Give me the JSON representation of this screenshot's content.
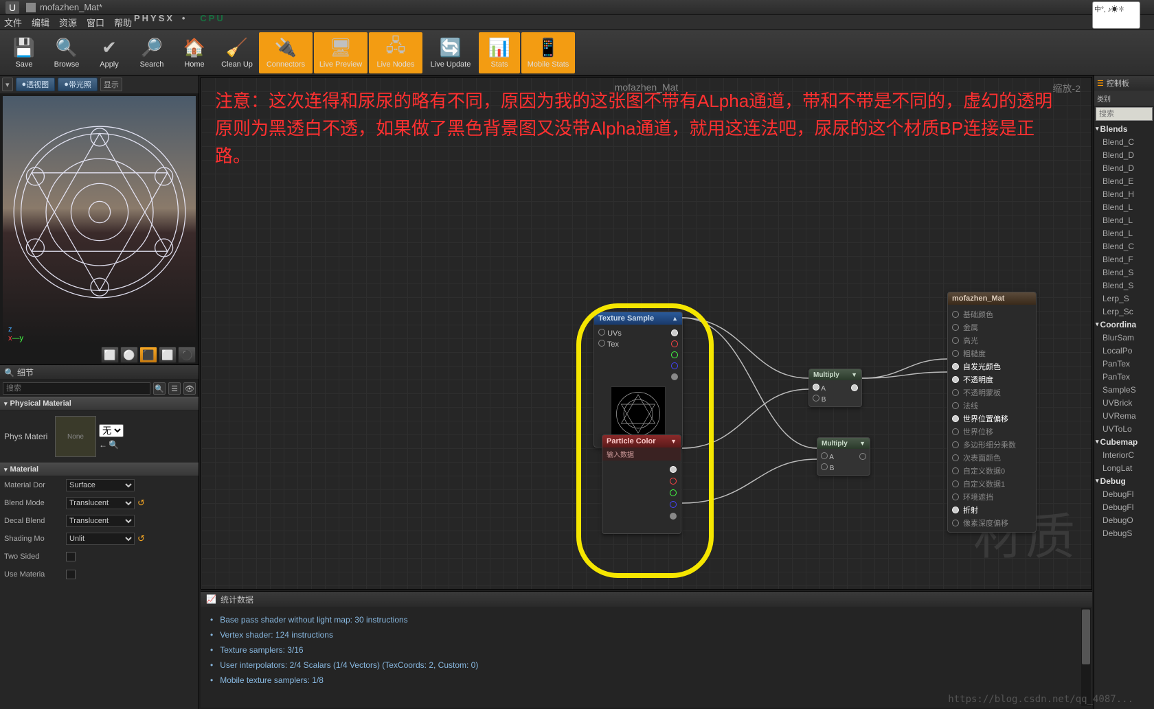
{
  "window": {
    "title": "mofazhen_Mat*",
    "ime": "中°,\n♪☀✽"
  },
  "menubar": [
    "文件",
    "编辑",
    "资源",
    "窗口",
    "帮助"
  ],
  "physx": {
    "main": "PHYSX",
    "sep": "•",
    "cpu": "CPU"
  },
  "toolbar": [
    {
      "name": "save",
      "label": "Save",
      "icon": "💾",
      "active": false,
      "wide": false
    },
    {
      "name": "browse",
      "label": "Browse",
      "icon": "🔍",
      "active": false,
      "wide": false
    },
    {
      "name": "apply",
      "label": "Apply",
      "icon": "✔",
      "active": false,
      "wide": false
    },
    {
      "name": "search",
      "label": "Search",
      "icon": "🔎",
      "active": false,
      "wide": false
    },
    {
      "name": "home",
      "label": "Home",
      "icon": "🏠",
      "active": false,
      "wide": false
    },
    {
      "name": "cleanup",
      "label": "Clean Up",
      "icon": "🧹",
      "active": false,
      "wide": false
    },
    {
      "name": "connectors",
      "label": "Connectors",
      "icon": "🔌",
      "active": true,
      "wide": true
    },
    {
      "name": "livepreview",
      "label": "Live Preview",
      "icon": "🖥",
      "active": true,
      "wide": true
    },
    {
      "name": "livenodes",
      "label": "Live Nodes",
      "icon": "🖧",
      "active": true,
      "wide": true
    },
    {
      "name": "liveupdate",
      "label": "Live Update",
      "icon": "🔄",
      "active": false,
      "wide": true
    },
    {
      "name": "stats",
      "label": "Stats",
      "icon": "📊",
      "active": true,
      "wide": false
    },
    {
      "name": "mobilestats",
      "label": "Mobile Stats",
      "icon": "📱",
      "active": true,
      "wide": true
    }
  ],
  "preview": {
    "buttons": {
      "persp": "透视图",
      "lit": "带光照",
      "show": "显示"
    },
    "axes": {
      "z": "z",
      "y": "y",
      "x": "x",
      "dash": "—"
    },
    "shapes": [
      "⬜",
      "⚪",
      "⬛",
      "⬜",
      "⚫"
    ],
    "shape_active_idx": 2
  },
  "details": {
    "tab": "细节",
    "search_ph": "搜索",
    "cat_phys": "Physical Material",
    "phys_label": "Phys Materi",
    "phys_none": "None",
    "phys_none_opt": "无",
    "cat_mat": "Material",
    "rows": {
      "dom": {
        "n": "Material Dor",
        "v": "Surface"
      },
      "blend": {
        "n": "Blend Mode",
        "v": "Translucent",
        "reset": true
      },
      "decal": {
        "n": "Decal Blend",
        "v": "Translucent"
      },
      "shade": {
        "n": "Shading Mo",
        "v": "Unlit",
        "reset": true
      },
      "two": {
        "n": "Two Sided"
      },
      "usemat": {
        "n": "Use Materia"
      }
    }
  },
  "graph": {
    "tab": "mofazhen_Mat",
    "zoom": "缩放-2",
    "watermark": "材质",
    "annotation": "注意：这次连得和尿尿的略有不同，原因为我的这张图不带有ALpha通道，带和不带是不同的，虚幻的透明原则为黑透白不透，如果做了黑色背景图又没带Alpha通道，就用这连法吧，尿尿的这个材质BP连接是正路。",
    "nodes": {
      "tex": {
        "title": "Texture Sample",
        "in": [
          "UVs",
          "Tex"
        ],
        "outs": [
          "w",
          "r",
          "g",
          "b",
          "a"
        ]
      },
      "pcolor": {
        "title": "Particle Color",
        "sub": "输入数据",
        "outs": [
          "w",
          "r",
          "g",
          "b",
          "a"
        ]
      },
      "mult": {
        "title": "Multiply",
        "ins": [
          "A",
          "B"
        ]
      },
      "output": {
        "title": "mofazhen_Mat",
        "pins": [
          {
            "t": "基础颜色",
            "on": false
          },
          {
            "t": "金属",
            "on": false
          },
          {
            "t": "高光",
            "on": false
          },
          {
            "t": "粗糙度",
            "on": false
          },
          {
            "t": "自发光颜色",
            "on": true
          },
          {
            "t": "不透明度",
            "on": true
          },
          {
            "t": "不透明蒙板",
            "on": false
          },
          {
            "t": "法线",
            "on": false
          },
          {
            "t": "世界位置偏移",
            "on": true
          },
          {
            "t": "世界位移",
            "on": false
          },
          {
            "t": "多边形细分乘数",
            "on": false
          },
          {
            "t": "次表面颜色",
            "on": false
          },
          {
            "t": "自定义数据0",
            "on": false
          },
          {
            "t": "自定义数据1",
            "on": false
          },
          {
            "t": "环境遮挡",
            "on": false
          },
          {
            "t": "折射",
            "on": true
          },
          {
            "t": "像素深度偏移",
            "on": false
          }
        ]
      }
    }
  },
  "stats": {
    "tab": "统计数据",
    "lines": [
      "Base pass shader without light map: 30 instructions",
      "Vertex shader: 124 instructions",
      "Texture samplers: 3/16",
      "User interpolators: 2/4 Scalars (1/4 Vectors) (TexCoords: 2, Custom: 0)",
      "Mobile texture samplers: 1/8"
    ]
  },
  "palette": {
    "title": "控制板",
    "search_ph": "搜索",
    "cat_label": "类别",
    "blends_hdr": "Blends",
    "items": [
      "Blend_C",
      "Blend_D",
      "Blend_D",
      "Blend_E",
      "Blend_H",
      "Blend_L",
      "Blend_L",
      "Blend_L",
      "Blend_C",
      "Blend_F",
      "Blend_S",
      "Blend_S",
      "Lerp_S",
      "Lerp_Sc"
    ],
    "coord_hdr": "Coordina",
    "coord": [
      "BlurSam",
      "LocalPo",
      "PanTex",
      "PanTex",
      "SampleS",
      "UVBrick",
      "UVRema",
      "UVToLo"
    ],
    "cubemap_hdr": "Cubemap",
    "cubemap": [
      "InteriorC",
      "LongLat"
    ],
    "debug_hdr": "Debug",
    "debug": [
      "DebugFl",
      "DebugFl",
      "DebugO",
      "DebugS"
    ]
  },
  "url": "https://blog.csdn.net/qq_4087..."
}
